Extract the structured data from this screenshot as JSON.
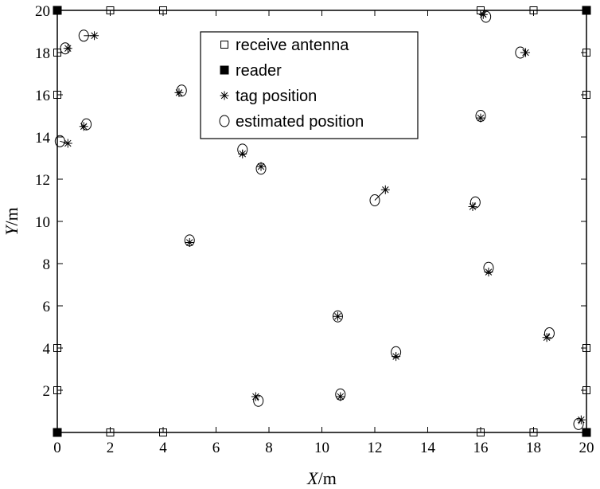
{
  "chart_data": {
    "type": "scatter",
    "xlabel": {
      "var": "X",
      "unit": "/m"
    },
    "ylabel": {
      "var": "Y",
      "unit": "/m"
    },
    "xlim": [
      0,
      20
    ],
    "ylim": [
      0,
      20
    ],
    "xticks": [
      0,
      2,
      4,
      6,
      8,
      10,
      12,
      14,
      16,
      18,
      20
    ],
    "yticks": [
      2,
      4,
      6,
      8,
      10,
      12,
      14,
      16,
      18,
      20
    ],
    "grid": false,
    "legend_position": "top-center",
    "series": [
      {
        "name": "receive antenna",
        "marker": "square-open",
        "points": [
          [
            2,
            20
          ],
          [
            4,
            20
          ],
          [
            16,
            20
          ],
          [
            18,
            20
          ],
          [
            2,
            0
          ],
          [
            4,
            0
          ],
          [
            16,
            0
          ],
          [
            18,
            0
          ],
          [
            0,
            18
          ],
          [
            0,
            16
          ],
          [
            0,
            4
          ],
          [
            0,
            2
          ],
          [
            20,
            18
          ],
          [
            20,
            16
          ],
          [
            20,
            4
          ],
          [
            20,
            2
          ]
        ]
      },
      {
        "name": "reader",
        "marker": "square-filled",
        "points": [
          [
            0,
            20
          ],
          [
            20,
            20
          ],
          [
            0,
            0
          ],
          [
            20,
            0
          ]
        ]
      },
      {
        "name": "tag position",
        "marker": "asterisk",
        "points": [
          [
            0.4,
            18.2
          ],
          [
            1.4,
            18.8
          ],
          [
            0.4,
            13.7
          ],
          [
            1.0,
            14.5
          ],
          [
            4.6,
            16.1
          ],
          [
            7.0,
            13.2
          ],
          [
            7.7,
            12.6
          ],
          [
            5.0,
            9.0
          ],
          [
            7.5,
            1.7
          ],
          [
            10.7,
            1.7
          ],
          [
            10.6,
            5.5
          ],
          [
            12.8,
            3.6
          ],
          [
            12.4,
            11.5
          ],
          [
            15.7,
            10.7
          ],
          [
            16.3,
            7.6
          ],
          [
            16.0,
            14.9
          ],
          [
            16.1,
            19.8
          ],
          [
            17.7,
            18.0
          ],
          [
            18.5,
            4.5
          ],
          [
            19.8,
            0.6
          ]
        ]
      },
      {
        "name": "estimated position",
        "marker": "circle-open",
        "points": [
          [
            0.3,
            18.2
          ],
          [
            1.0,
            18.8
          ],
          [
            0.1,
            13.8
          ],
          [
            1.1,
            14.6
          ],
          [
            4.7,
            16.2
          ],
          [
            7.0,
            13.4
          ],
          [
            7.7,
            12.5
          ],
          [
            5.0,
            9.1
          ],
          [
            7.6,
            1.5
          ],
          [
            10.7,
            1.8
          ],
          [
            10.6,
            5.5
          ],
          [
            12.8,
            3.8
          ],
          [
            12.0,
            11.0
          ],
          [
            15.8,
            10.9
          ],
          [
            16.3,
            7.8
          ],
          [
            16.0,
            15.0
          ],
          [
            16.2,
            19.7
          ],
          [
            17.5,
            18.0
          ],
          [
            18.6,
            4.7
          ],
          [
            19.7,
            0.4
          ]
        ]
      }
    ]
  }
}
